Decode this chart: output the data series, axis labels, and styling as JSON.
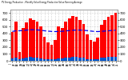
{
  "title": "PV Energy Production - Monthly Solar Energy Production Value Running Average",
  "bar_values": [
    420,
    580,
    130,
    480,
    560,
    620,
    600,
    570,
    500,
    350,
    270,
    240,
    310,
    500,
    480,
    580,
    620,
    660,
    650,
    600,
    540,
    390,
    310,
    280,
    340,
    530,
    600,
    640,
    670,
    700
  ],
  "avg_values": [
    430,
    440,
    440,
    445,
    450,
    455,
    455,
    452,
    448,
    440,
    435,
    430,
    428,
    430,
    432,
    438,
    443,
    448,
    450,
    450,
    447,
    442,
    436,
    430,
    428,
    432,
    436,
    440,
    445,
    448
  ],
  "small_values": [
    30,
    45,
    18,
    38,
    48,
    55,
    52,
    46,
    40,
    25,
    20,
    18,
    24,
    40,
    36,
    46,
    52,
    58,
    55,
    48,
    42,
    28,
    22,
    20,
    26,
    42,
    52,
    56,
    58,
    62
  ],
  "bar_color": "#FF0000",
  "small_bar_color": "#0055CC",
  "avg_color": "#0000EE",
  "bg_color": "#FFFFFF",
  "grid_color": "#AAAAAA",
  "ylim_main": [
    0,
    750
  ],
  "yticks": [
    0,
    100,
    200,
    300,
    400,
    500,
    600,
    700
  ],
  "n_bars": 30
}
